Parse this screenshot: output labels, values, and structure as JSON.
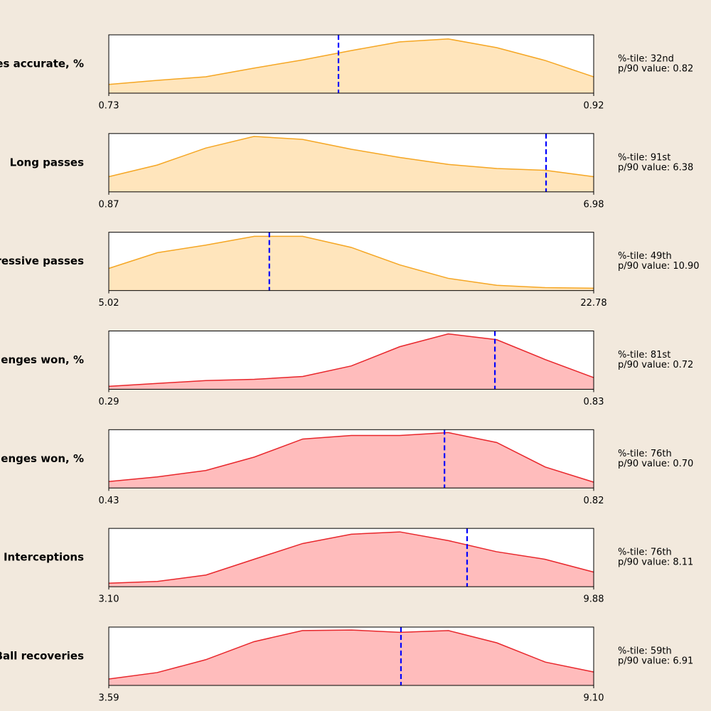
{
  "chart_data": [
    {
      "type": "area",
      "label": "es accurate, %",
      "x": [
        0.73,
        0.749,
        0.768,
        0.787,
        0.806,
        0.825,
        0.844,
        0.863,
        0.882,
        0.901,
        0.92
      ],
      "values": [
        0.15,
        0.22,
        0.28,
        0.43,
        0.57,
        0.73,
        0.88,
        0.93,
        0.78,
        0.56,
        0.28
      ],
      "color": "#f5a623",
      "fill": "#ffe5bc",
      "xlim": [
        0.73,
        0.92
      ],
      "xticks": [
        0.73,
        0.92
      ],
      "ylim": [
        0,
        1
      ],
      "marker": 0.82,
      "marker_color": "#0000ff",
      "percentile_label": "%-tile: 32nd",
      "value_label": "p/90 value: 0.82"
    },
    {
      "type": "area",
      "label": "Long passes",
      "x": [
        0.87,
        1.48,
        2.09,
        2.7,
        3.31,
        3.93,
        4.54,
        5.15,
        5.76,
        6.37,
        6.98
      ],
      "values": [
        0.26,
        0.46,
        0.75,
        0.95,
        0.9,
        0.73,
        0.59,
        0.47,
        0.4,
        0.37,
        0.26
      ],
      "color": "#f5a623",
      "fill": "#ffe5bc",
      "xlim": [
        0.87,
        6.98
      ],
      "xticks": [
        0.87,
        6.98
      ],
      "ylim": [
        0,
        1
      ],
      "marker": 6.38,
      "marker_color": "#0000ff",
      "percentile_label": "%-tile: 91st",
      "value_label": "p/90 value: 6.38"
    },
    {
      "type": "area",
      "label": "ressive passes",
      "x": [
        5.02,
        6.8,
        8.57,
        10.35,
        12.12,
        13.9,
        15.68,
        17.45,
        19.23,
        21.0,
        22.78
      ],
      "values": [
        0.38,
        0.65,
        0.78,
        0.93,
        0.93,
        0.74,
        0.44,
        0.21,
        0.09,
        0.05,
        0.04
      ],
      "color": "#f5a623",
      "fill": "#ffe5bc",
      "xlim": [
        5.02,
        22.78
      ],
      "xticks": [
        5.02,
        22.78
      ],
      "ylim": [
        0,
        1
      ],
      "marker": 10.9,
      "marker_color": "#0000ff",
      "percentile_label": "%-tile: 49th",
      "value_label": "p/90 value: 10.90"
    },
    {
      "type": "area",
      "label": "enges won, %",
      "x": [
        0.29,
        0.344,
        0.398,
        0.452,
        0.506,
        0.56,
        0.614,
        0.668,
        0.722,
        0.776,
        0.83
      ],
      "values": [
        0.05,
        0.1,
        0.15,
        0.17,
        0.22,
        0.4,
        0.73,
        0.95,
        0.85,
        0.51,
        0.2
      ],
      "color": "#e8262b",
      "fill": "#ffbcbc",
      "xlim": [
        0.29,
        0.83
      ],
      "xticks": [
        0.29,
        0.83
      ],
      "ylim": [
        0,
        1
      ],
      "marker": 0.72,
      "marker_color": "#0000ff",
      "percentile_label": "%-tile: 81st",
      "value_label": "p/90 value: 0.72"
    },
    {
      "type": "area",
      "label": "enges won, %",
      "x": [
        0.43,
        0.469,
        0.508,
        0.547,
        0.586,
        0.625,
        0.664,
        0.703,
        0.742,
        0.781,
        0.82
      ],
      "values": [
        0.11,
        0.19,
        0.3,
        0.53,
        0.84,
        0.9,
        0.9,
        0.95,
        0.78,
        0.36,
        0.1
      ],
      "color": "#e8262b",
      "fill": "#ffbcbc",
      "xlim": [
        0.43,
        0.82
      ],
      "xticks": [
        0.43,
        0.82
      ],
      "ylim": [
        0,
        1
      ],
      "marker": 0.7,
      "marker_color": "#0000ff",
      "percentile_label": "%-tile: 76th",
      "value_label": "p/90 value: 0.70"
    },
    {
      "type": "area",
      "label": "Interceptions",
      "x": [
        3.1,
        3.78,
        4.46,
        5.13,
        5.81,
        6.49,
        7.17,
        7.85,
        8.52,
        9.2,
        9.88
      ],
      "values": [
        0.06,
        0.09,
        0.2,
        0.47,
        0.74,
        0.9,
        0.94,
        0.79,
        0.6,
        0.47,
        0.25
      ],
      "color": "#e8262b",
      "fill": "#ffbcbc",
      "xlim": [
        3.1,
        9.88
      ],
      "xticks": [
        {
          "value": 3.1,
          "label": "3.10"
        },
        9.88
      ],
      "ylim": [
        0,
        1
      ],
      "marker": 8.11,
      "marker_color": "#0000ff",
      "percentile_label": "%-tile: 76th",
      "value_label": "p/90 value: 8.11"
    },
    {
      "type": "area",
      "label": "Ball recoveries",
      "x": [
        3.59,
        4.14,
        4.69,
        5.24,
        5.79,
        6.35,
        6.9,
        7.45,
        8.0,
        8.55,
        9.1
      ],
      "values": [
        0.11,
        0.22,
        0.44,
        0.75,
        0.94,
        0.95,
        0.91,
        0.94,
        0.73,
        0.4,
        0.23
      ],
      "color": "#e8262b",
      "fill": "#ffbcbc",
      "xlim": [
        3.59,
        9.1
      ],
      "xticks": [
        3.59,
        {
          "value": 9.1,
          "label": "9.10"
        }
      ],
      "ylim": [
        0,
        1
      ],
      "marker": 6.91,
      "marker_color": "#0000ff",
      "percentile_label": "%-tile: 59th",
      "value_label": "p/90 value: 6.91"
    }
  ]
}
